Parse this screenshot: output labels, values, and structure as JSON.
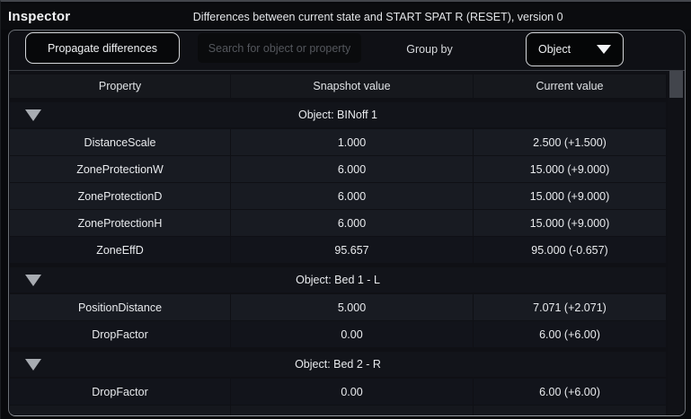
{
  "titlebar": {
    "title": "Inspector",
    "subtitle": "Differences between current state and START SPAT R (RESET), version 0"
  },
  "toolbar": {
    "propagate_label": "Propagate differences",
    "search_placeholder": "Search for object or property",
    "group_by_label": "Group by",
    "group_by_value": "Object"
  },
  "table": {
    "columns": [
      "Property",
      "Snapshot value",
      "Current value"
    ],
    "sections": [
      {
        "group": "Object: BINoff 1",
        "rows": [
          {
            "property": "DistanceScale",
            "snapshot": "1.000",
            "current": "2.500 (+1.500)"
          },
          {
            "property": "ZoneProtectionW",
            "snapshot": "6.000",
            "current": "15.000 (+9.000)"
          },
          {
            "property": "ZoneProtectionD",
            "snapshot": "6.000",
            "current": "15.000 (+9.000)"
          },
          {
            "property": "ZoneProtectionH",
            "snapshot": "6.000",
            "current": "15.000 (+9.000)"
          },
          {
            "property": "ZoneEffD",
            "snapshot": "95.657",
            "current": "95.000 (-0.657)"
          }
        ]
      },
      {
        "group": "Object: Bed 1 - L",
        "rows": [
          {
            "property": "PositionDistance",
            "snapshot": "5.000",
            "current": "7.071 (+2.071)"
          },
          {
            "property": "DropFactor",
            "snapshot": "0.00",
            "current": "6.00 (+6.00)"
          }
        ]
      },
      {
        "group": "Object: Bed 2 - R",
        "rows": [
          {
            "property": "DropFactor",
            "snapshot": "0.00",
            "current": "6.00 (+6.00)"
          }
        ]
      }
    ]
  },
  "colors": {
    "panel_border": "#6d7177",
    "row_background": "#181b22",
    "group_row_background": "#12141a",
    "header_row_background": "#16181d",
    "text": "#e9ebee",
    "accent_border": "#d4d6d9"
  }
}
